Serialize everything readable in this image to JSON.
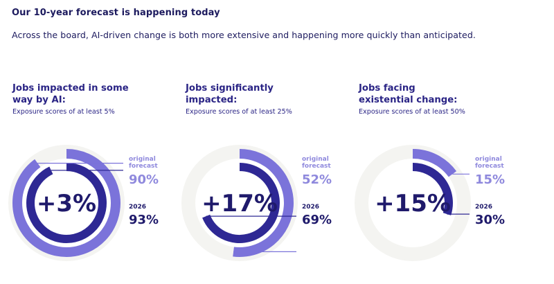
{
  "header": {
    "headline": "Our 10-year forecast is happening today",
    "subhead": "Across the board, AI-driven change is both more extensive and happening more quickly than anticipated."
  },
  "colors": {
    "original_ring": "#7b73da",
    "current_ring": "#2e2894",
    "track": "#f4f4f1",
    "text_dark": "#1f1a6b",
    "text_light": "#8f89dd"
  },
  "chart_data": [
    {
      "type": "pie",
      "title_line1": "Jobs impacted in some",
      "title_line2": "way by AI:",
      "subtitle": "Exposure scores of at least 5%",
      "center_label": "+3%",
      "original_label_line1": "original",
      "original_label_line2": "forecast",
      "original_value": 90,
      "original_value_label": "90%",
      "current_label": "2026",
      "current_value": 93,
      "current_value_label": "93%"
    },
    {
      "type": "pie",
      "title_line1": "Jobs significantly",
      "title_line2": "impacted:",
      "subtitle": "Exposure scores of at least 25%",
      "center_label": "+17%",
      "original_label_line1": "original",
      "original_label_line2": "forecast",
      "original_value": 52,
      "original_value_label": "52%",
      "current_label": "2026",
      "current_value": 69,
      "current_value_label": "69%"
    },
    {
      "type": "pie",
      "title_line1": "Jobs facing",
      "title_line2": "existential change:",
      "subtitle": "Exposure scores of at least 50%",
      "center_label": "+15%",
      "original_label_line1": "original",
      "original_label_line2": "forecast",
      "original_value": 15,
      "original_value_label": "15%",
      "current_label": "2026",
      "current_value": 30,
      "current_value_label": "30%"
    }
  ]
}
